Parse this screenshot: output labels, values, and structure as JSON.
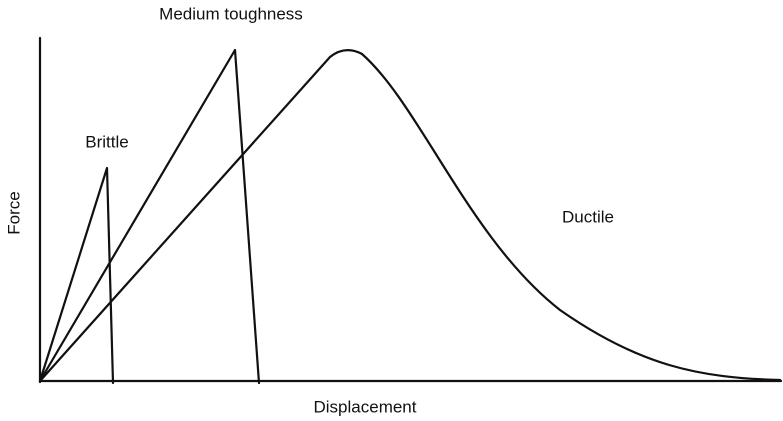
{
  "labels": {
    "medium": "Medium toughness",
    "brittle": "Brittle",
    "ductile": "Ductile"
  },
  "axes": {
    "y": "Force",
    "x": "Displacement"
  }
}
